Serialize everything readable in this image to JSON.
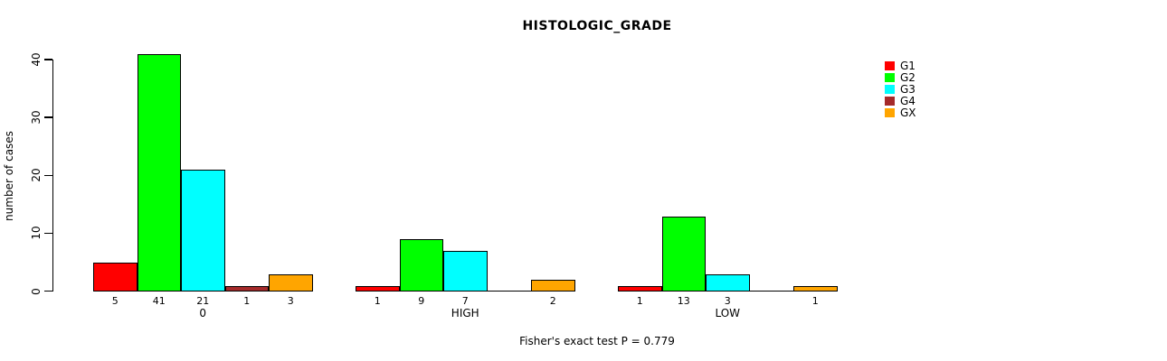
{
  "title": "HISTOLOGIC_GRADE",
  "ylabel": "number of cases",
  "annotation": "Fisher's exact test P = 0.779",
  "chart_data": {
    "type": "bar",
    "title": "HISTOLOGIC_GRADE",
    "xlabel": "",
    "ylabel": "number of cases",
    "ylim": [
      0,
      40
    ],
    "yticks": [
      0,
      10,
      20,
      30,
      40
    ],
    "grid": false,
    "legend_position": "top-right",
    "categories": [
      "0",
      "HIGH",
      "LOW"
    ],
    "series": [
      {
        "name": "G1",
        "color": "#ff0000",
        "values": [
          5,
          1,
          1
        ]
      },
      {
        "name": "G2",
        "color": "#00ff00",
        "values": [
          41,
          9,
          13
        ]
      },
      {
        "name": "G3",
        "color": "#00ffff",
        "values": [
          21,
          7,
          3
        ]
      },
      {
        "name": "G4",
        "color": "#a52a2a",
        "values": [
          1,
          0,
          0
        ]
      },
      {
        "name": "GX",
        "color": "#ffa500",
        "values": [
          3,
          2,
          1
        ]
      }
    ],
    "bar_value_labels": [
      [
        "5",
        "41",
        "21",
        "1",
        "3"
      ],
      [
        "1",
        "9",
        "7",
        "",
        "2"
      ],
      [
        "1",
        "13",
        "3",
        "",
        "1"
      ]
    ],
    "annotation": "Fisher's exact test P = 0.779"
  }
}
